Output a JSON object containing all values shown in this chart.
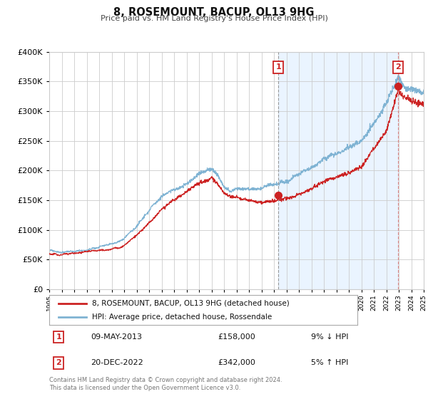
{
  "title": "8, ROSEMOUNT, BACUP, OL13 9HG",
  "subtitle": "Price paid vs. HM Land Registry's House Price Index (HPI)",
  "legend_line1": "8, ROSEMOUNT, BACUP, OL13 9HG (detached house)",
  "legend_line2": "HPI: Average price, detached house, Rossendale",
  "sale1_date": "09-MAY-2013",
  "sale1_price": "£158,000",
  "sale1_hpi": "9% ↓ HPI",
  "sale1_date_num": 2013.36,
  "sale1_price_val": 158000,
  "sale2_date": "20-DEC-2022",
  "sale2_price": "£342,000",
  "sale2_hpi": "5% ↑ HPI",
  "sale2_date_num": 2022.97,
  "sale2_price_val": 342000,
  "xmin": 1995,
  "xmax": 2025,
  "ymin": 0,
  "ymax": 400000,
  "hpi_color": "#7fb3d3",
  "sale_color": "#cc2222",
  "vline1_color": "#aaaaaa",
  "vline2_color": "#e08888",
  "shade_color": "#ddeeff",
  "plot_bg_color": "#ffffff",
  "grid_color": "#cccccc",
  "footer_text": "Contains HM Land Registry data © Crown copyright and database right 2024.\nThis data is licensed under the Open Government Licence v3.0."
}
